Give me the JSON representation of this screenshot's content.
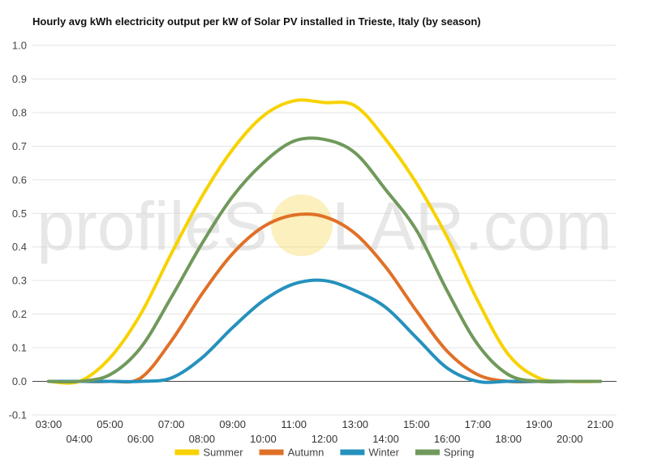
{
  "chart_data": {
    "type": "line",
    "title": "Hourly avg kWh electricity output per kW of Solar PV installed in Trieste, Italy (by season)",
    "xlabel": "",
    "ylabel": "",
    "x": [
      "03:00",
      "04:00",
      "05:00",
      "06:00",
      "07:00",
      "08:00",
      "09:00",
      "10:00",
      "11:00",
      "12:00",
      "13:00",
      "14:00",
      "15:00",
      "16:00",
      "17:00",
      "18:00",
      "19:00",
      "20:00",
      "21:00"
    ],
    "ylim": [
      -0.1,
      1.0
    ],
    "yticks": [
      "-0.1",
      "0.0",
      "0.1",
      "0.2",
      "0.3",
      "0.4",
      "0.5",
      "0.6",
      "0.7",
      "0.8",
      "0.9",
      "1.0"
    ],
    "grid": true,
    "legend_position": "bottom",
    "series": [
      {
        "name": "Summer",
        "color": "#f7d200",
        "values": [
          0,
          0,
          0.07,
          0.2,
          0.38,
          0.55,
          0.69,
          0.79,
          0.835,
          0.83,
          0.82,
          0.72,
          0.59,
          0.43,
          0.24,
          0.08,
          0.01,
          0,
          0
        ]
      },
      {
        "name": "Autumn",
        "color": "#e07027",
        "values": [
          0,
          0,
          0,
          0.01,
          0.12,
          0.26,
          0.38,
          0.46,
          0.495,
          0.49,
          0.44,
          0.34,
          0.21,
          0.09,
          0.02,
          0,
          0,
          0,
          0
        ]
      },
      {
        "name": "Winter",
        "color": "#2591bd",
        "values": [
          0,
          0,
          0,
          0,
          0.01,
          0.07,
          0.16,
          0.24,
          0.29,
          0.3,
          0.27,
          0.22,
          0.13,
          0.04,
          0,
          0,
          0,
          0,
          0
        ]
      },
      {
        "name": "Spring",
        "color": "#70995b",
        "values": [
          0,
          0,
          0.02,
          0.1,
          0.25,
          0.41,
          0.55,
          0.65,
          0.715,
          0.72,
          0.68,
          0.57,
          0.45,
          0.27,
          0.11,
          0.02,
          0,
          0,
          0
        ]
      }
    ]
  },
  "watermark": {
    "before": "profileS",
    "after": "LAR.com"
  }
}
